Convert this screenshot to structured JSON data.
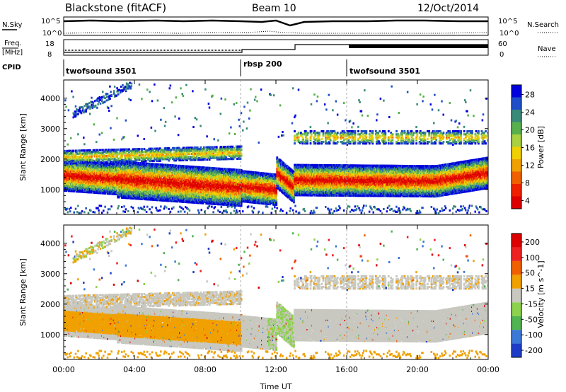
{
  "header": {
    "station": "Blackstone (fitACF)",
    "beam": "Beam 10",
    "date": "12/Oct/2014"
  },
  "top_panels": {
    "nsky_label": "N.Sky",
    "nsearch_label": "N.Search",
    "nsky_ticks": [
      "10^5",
      "10^0"
    ],
    "freq_label_1": "Freq.",
    "freq_label_2": "[MHz]",
    "freq_ticks": [
      "18",
      "8"
    ],
    "nave_label": "Nave",
    "nave_ticks": [
      "60",
      "0"
    ],
    "cpid_label": "CPID",
    "cpid_segments": [
      {
        "label": "twofsound 3501",
        "start": 0,
        "end": 10
      },
      {
        "label": "rbsp 200",
        "start": 10,
        "end": 16
      },
      {
        "label": "twofsound 3501",
        "start": 16,
        "end": 24
      }
    ]
  },
  "chart_data": [
    {
      "type": "heatmap",
      "panel": "power",
      "xlabel": "Time UT",
      "ylabel": "Slant Range [km]",
      "xticks": [
        "00:00",
        "04:00",
        "08:00",
        "12:00",
        "16:00",
        "20:00",
        "00:00"
      ],
      "xlim_hours": [
        0,
        24
      ],
      "yticks": [
        1000,
        2000,
        3000,
        4000
      ],
      "ylim_km": [
        180,
        4600
      ],
      "colorbar": {
        "label": "Power [dB]",
        "ticks": [
          "28",
          "24",
          "20",
          "16",
          "12",
          "8",
          "4"
        ],
        "range": [
          0,
          30
        ],
        "colors": [
          "#0000dd",
          "#1e4ec8",
          "#3a8a7a",
          "#58b04c",
          "#a8d040",
          "#f0d000",
          "#f0a000",
          "#f06000",
          "#ee2000",
          "#dd0000"
        ]
      },
      "features": [
        {
          "name": "main echo band",
          "t_start": 0,
          "t_end": 24,
          "range_km": [
            900,
            1600
          ]
        },
        {
          "name": "far-range band",
          "t_start": 0,
          "t_end": 10,
          "range_km": [
            1800,
            2300
          ]
        },
        {
          "name": "sparse far echoes",
          "t_start": 13,
          "t_end": 24,
          "range_km": [
            2600,
            3000
          ]
        }
      ]
    },
    {
      "type": "heatmap",
      "panel": "velocity",
      "xlabel": "Time UT",
      "ylabel": "Slant Range [km]",
      "xticks": [
        "00:00",
        "04:00",
        "08:00",
        "12:00",
        "16:00",
        "20:00",
        "00:00"
      ],
      "xlim_hours": [
        0,
        24
      ],
      "yticks": [
        1000,
        2000,
        3000,
        4000
      ],
      "ylim_km": [
        180,
        4600
      ],
      "colorbar": {
        "label": "Velocity [m s^-1]",
        "ticks": [
          "200",
          "100",
          "50",
          "15",
          "-15",
          "-50",
          "-100",
          "-200"
        ],
        "colors": [
          "#1e3cc8",
          "#3c78d8",
          "#50b450",
          "#8cd24c",
          "#c8c8c0",
          "#f0a000",
          "#f06000",
          "#ee2020",
          "#dd0000"
        ]
      }
    }
  ]
}
